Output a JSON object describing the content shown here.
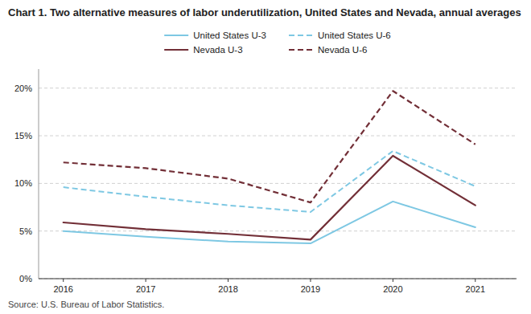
{
  "chart_data": {
    "type": "line",
    "title": "Chart 1. Two alternative measures of labor underutilization, United States and Nevada, annual averages",
    "source": "Source: U.S. Bureau of Labor Statistics.",
    "x": [
      2016,
      2017,
      2018,
      2019,
      2020,
      2021
    ],
    "series": [
      {
        "name": "United States U-3",
        "color": "#7ec8e3",
        "line_style": "solid",
        "values": [
          5.0,
          4.4,
          3.9,
          3.7,
          8.1,
          5.4
        ]
      },
      {
        "name": "United States U-6",
        "color": "#7ec8e3",
        "line_style": "dashed",
        "values": [
          9.6,
          8.6,
          7.7,
          7.0,
          13.4,
          9.7
        ]
      },
      {
        "name": "Nevada U-3",
        "color": "#722f37",
        "line_style": "solid",
        "values": [
          5.9,
          5.2,
          4.7,
          4.1,
          12.9,
          7.7
        ]
      },
      {
        "name": "Nevada U-6",
        "color": "#722f37",
        "line_style": "dashed",
        "values": [
          12.2,
          11.6,
          10.5,
          8.0,
          19.7,
          14.1
        ]
      }
    ],
    "xlim": [
      2015.7,
      2021.5
    ],
    "xticks": [
      2016,
      2017,
      2018,
      2019,
      2020,
      2021
    ],
    "ylim": [
      0,
      22
    ],
    "yticks": [
      {
        "value": 0,
        "label": "0%"
      },
      {
        "value": 5,
        "label": "5%"
      },
      {
        "value": 10,
        "label": "10%"
      },
      {
        "value": 15,
        "label": "15%"
      },
      {
        "value": 20,
        "label": "20%"
      }
    ],
    "grid": true,
    "legend": "top"
  }
}
